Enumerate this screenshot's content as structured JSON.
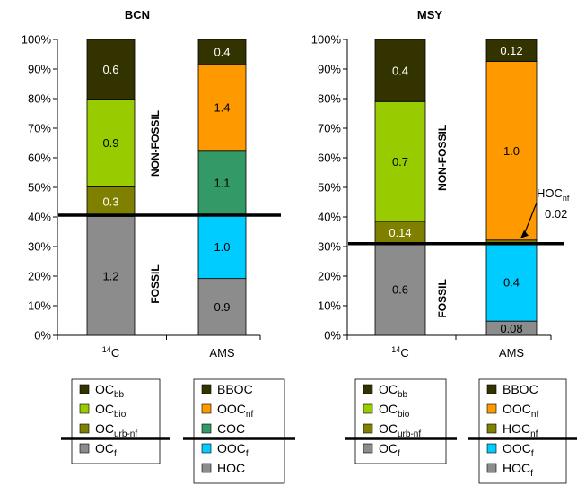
{
  "chart_data": [
    {
      "type": "bar",
      "title": "BCN",
      "stacked": true,
      "ylim": [
        0,
        100
      ],
      "yticks": [
        "0%",
        "10%",
        "20%",
        "30%",
        "40%",
        "50%",
        "60%",
        "70%",
        "80%",
        "90%",
        "100%"
      ],
      "categories": [
        "14C",
        "AMS"
      ],
      "bars": [
        {
          "category": "14C",
          "segments": [
            {
              "label": "OCf",
              "from": 0,
              "to": 40.2,
              "value_label": "1.2",
              "color": "#8c8c8c"
            },
            {
              "label": "OCurb-nf",
              "from": 40.2,
              "to": 50.2,
              "value_label": "0.3",
              "color": "#808000"
            },
            {
              "label": "OCbio",
              "from": 50.2,
              "to": 79.8,
              "value_label": "0.9",
              "color": "#99cc00"
            },
            {
              "label": "OCbb",
              "from": 79.8,
              "to": 100,
              "value_label": "0.6",
              "color": "#333300"
            }
          ]
        },
        {
          "category": "AMS",
          "segments": [
            {
              "label": "HOC",
              "from": 0,
              "to": 19.2,
              "value_label": "0.9",
              "color": "#8c8c8c"
            },
            {
              "label": "OOCf",
              "from": 19.2,
              "to": 40.5,
              "value_label": "1.0",
              "color": "#00ccff"
            },
            {
              "label": "COC",
              "from": 40.5,
              "to": 62.5,
              "value_label": "1.1",
              "color": "#339966"
            },
            {
              "label": "OOCnf",
              "from": 62.5,
              "to": 91.5,
              "value_label": "1.4",
              "color": "#ff9900"
            },
            {
              "label": "BBOC",
              "from": 91.5,
              "to": 100,
              "value_label": "0.4",
              "color": "#333300"
            }
          ]
        }
      ],
      "divider_level": 40.6,
      "side_labels": {
        "upper": "NON-FOSSIL",
        "lower": "FOSSIL"
      },
      "legends": [
        {
          "above": [
            {
              "text": "OC",
              "sub": "bb",
              "color": "#333300"
            },
            {
              "text": "OC",
              "sub": "bio",
              "color": "#99cc00"
            },
            {
              "text": "OC",
              "sub": "urb-nf",
              "color": "#808000"
            }
          ],
          "below": [
            {
              "text": "OC",
              "sub": "f",
              "color": "#8c8c8c"
            }
          ]
        },
        {
          "above": [
            {
              "text": "BBOC",
              "sub": "",
              "color": "#333300"
            },
            {
              "text": "OOC",
              "sub": "nf",
              "color": "#ff9900"
            },
            {
              "text": "COC",
              "sub": "",
              "color": "#339966"
            }
          ],
          "below": [
            {
              "text": "OOC",
              "sub": "f",
              "color": "#00ccff"
            },
            {
              "text": "HOC",
              "sub": "",
              "color": "#8c8c8c"
            }
          ]
        }
      ]
    },
    {
      "type": "bar",
      "title": "MSY",
      "stacked": true,
      "ylim": [
        0,
        100
      ],
      "yticks": [
        "0%",
        "10%",
        "20%",
        "30%",
        "40%",
        "50%",
        "60%",
        "70%",
        "80%",
        "90%",
        "100%"
      ],
      "categories": [
        "14C",
        "AMS"
      ],
      "bars": [
        {
          "category": "14C",
          "segments": [
            {
              "label": "OCf",
              "from": 0,
              "to": 31,
              "value_label": "0.6",
              "color": "#8c8c8c"
            },
            {
              "label": "OCurb-nf",
              "from": 31,
              "to": 38.5,
              "value_label": "0.14",
              "color": "#808000"
            },
            {
              "label": "OCbio",
              "from": 38.5,
              "to": 79,
              "value_label": "0.7",
              "color": "#99cc00"
            },
            {
              "label": "OCbb",
              "from": 79,
              "to": 100,
              "value_label": "0.4",
              "color": "#333300"
            }
          ]
        },
        {
          "category": "AMS",
          "segments": [
            {
              "label": "HOCf",
              "from": 0,
              "to": 4.8,
              "value_label": "0.08",
              "color": "#8c8c8c"
            },
            {
              "label": "OOCf",
              "from": 4.8,
              "to": 31,
              "value_label": "0.4",
              "color": "#00ccff"
            },
            {
              "label": "HOCnf",
              "from": 31,
              "to": 32.2,
              "value_label": "",
              "color": "#808000"
            },
            {
              "label": "OOCnf",
              "from": 32.2,
              "to": 92.6,
              "value_label": "1.0",
              "color": "#ff9900"
            },
            {
              "label": "BBOC",
              "from": 92.6,
              "to": 100,
              "value_label": "0.12",
              "color": "#333300"
            }
          ]
        }
      ],
      "divider_level": 31,
      "side_labels": {
        "upper": "NON-FOSSIL",
        "lower": "FOSSIL"
      },
      "annotation": {
        "text": "HOC",
        "sub": "nf",
        "value": "0.02",
        "target_level": 31.6
      },
      "legends": [
        {
          "above": [
            {
              "text": "OC",
              "sub": "bb",
              "color": "#333300"
            },
            {
              "text": "OC",
              "sub": "bio",
              "color": "#99cc00"
            },
            {
              "text": "OC",
              "sub": "urb-nf",
              "color": "#808000"
            }
          ],
          "below": [
            {
              "text": "OC",
              "sub": "f",
              "color": "#8c8c8c"
            }
          ]
        },
        {
          "above": [
            {
              "text": "BBOC",
              "sub": "",
              "color": "#333300"
            },
            {
              "text": "OOC",
              "sub": "nf",
              "color": "#ff9900"
            },
            {
              "text": "HOC",
              "sub": "nf",
              "color": "#808000"
            }
          ],
          "below": [
            {
              "text": "OOC",
              "sub": "f",
              "color": "#00ccff"
            },
            {
              "text": "HOC",
              "sub": "f",
              "color": "#8c8c8c"
            }
          ]
        }
      ]
    }
  ],
  "category_labels": [
    {
      "sup": "14",
      "base": "C"
    },
    {
      "sup": "",
      "base": "AMS"
    }
  ]
}
